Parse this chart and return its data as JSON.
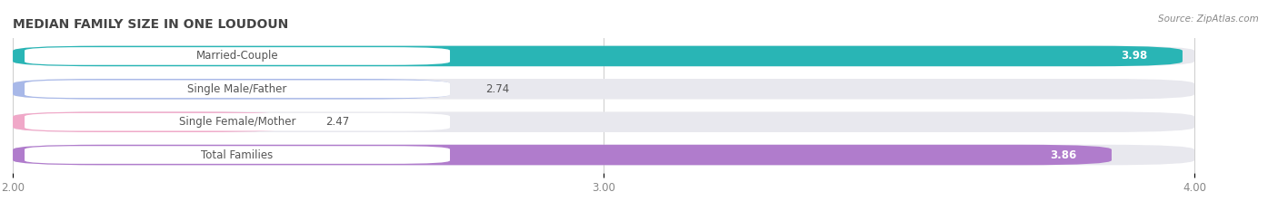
{
  "title": "MEDIAN FAMILY SIZE IN ONE LOUDOUN",
  "source": "Source: ZipAtlas.com",
  "categories": [
    "Married-Couple",
    "Single Male/Father",
    "Single Female/Mother",
    "Total Families"
  ],
  "values": [
    3.98,
    2.74,
    2.47,
    3.86
  ],
  "bar_colors": [
    "#29b5b5",
    "#a8b8e8",
    "#f0a8c8",
    "#b07ccc"
  ],
  "x_min": 2.0,
  "x_max": 4.0,
  "x_ticks": [
    2.0,
    3.0,
    4.0
  ],
  "bar_height": 0.62,
  "background_color": "#ffffff",
  "bar_bg_color": "#e8e8ee",
  "title_fontsize": 10,
  "label_fontsize": 8.5,
  "value_fontsize": 8.5,
  "tick_fontsize": 8.5
}
